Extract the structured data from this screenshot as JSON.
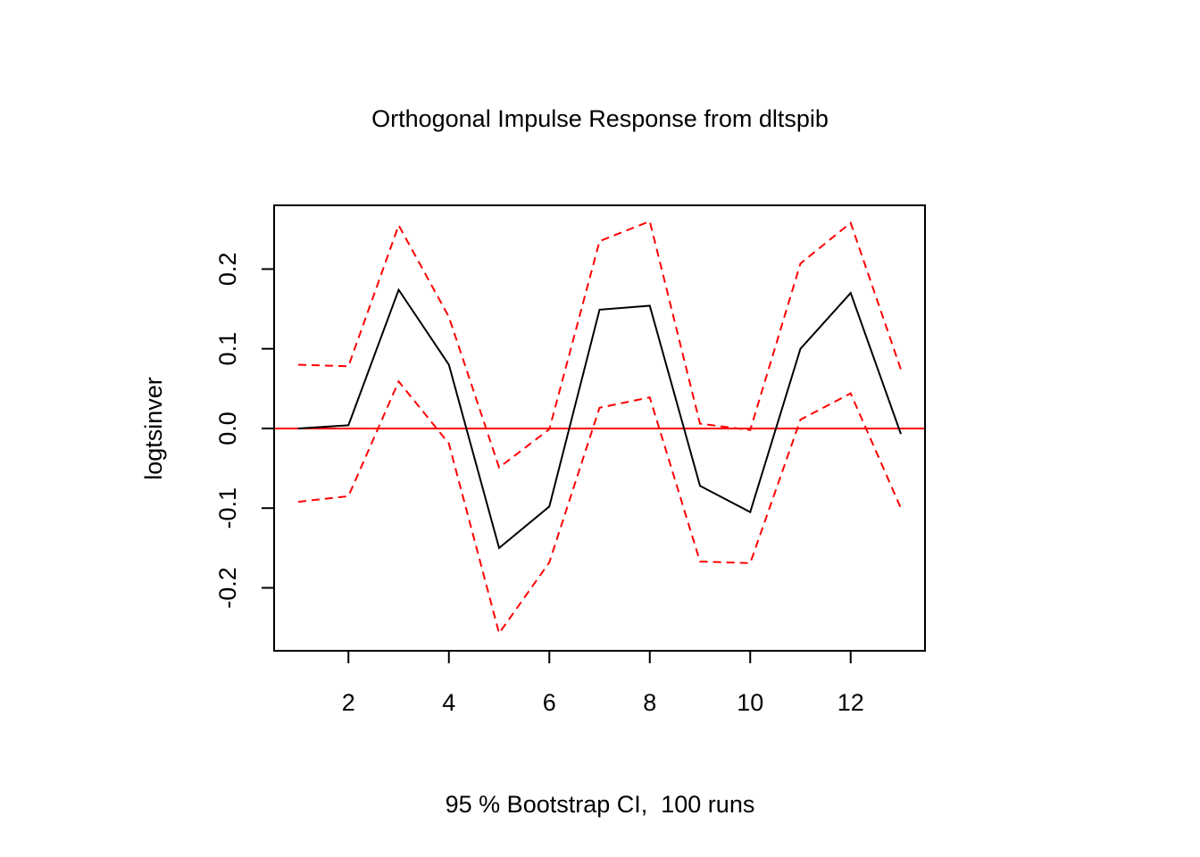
{
  "chart_data": {
    "type": "line",
    "title": "Orthogonal Impulse Response from dltspib",
    "xlabel": "95 % Bootstrap CI,  100 runs",
    "ylabel": "logtsinver",
    "x": [
      1,
      2,
      3,
      4,
      5,
      6,
      7,
      8,
      9,
      10,
      11,
      12,
      13
    ],
    "series": [
      {
        "color": "#000000",
        "dashed": false,
        "values": [
          0,
          0.004,
          0.174,
          0.08,
          -0.15,
          -0.098,
          0.149,
          0.154,
          -0.072,
          -0.105,
          0.1,
          0.17,
          -0.007
        ]
      },
      {
        "color": "#ff0000",
        "dashed": true,
        "values": [
          0.08,
          0.078,
          0.255,
          0.14,
          -0.049,
          -0.001,
          0.235,
          0.26,
          0.006,
          -0.002,
          0.207,
          0.258,
          0.074
        ]
      },
      {
        "color": "#ff0000",
        "dashed": true,
        "values": [
          -0.092,
          -0.085,
          0.059,
          -0.019,
          -0.257,
          -0.168,
          0.026,
          0.039,
          -0.167,
          -0.169,
          0.011,
          0.044,
          -0.1
        ]
      }
    ],
    "reference_line": {
      "value": 0,
      "color": "#ff0000"
    },
    "xlim": [
      0.52,
      13.48
    ],
    "xticks": [
      2,
      4,
      6,
      8,
      10,
      12
    ],
    "ylim": [
      -0.279,
      0.28
    ],
    "yticks": [
      -0.2,
      -0.1,
      {
        "value": 0,
        "label": "0.0"
      },
      0.1,
      0.2
    ],
    "grid": false
  }
}
